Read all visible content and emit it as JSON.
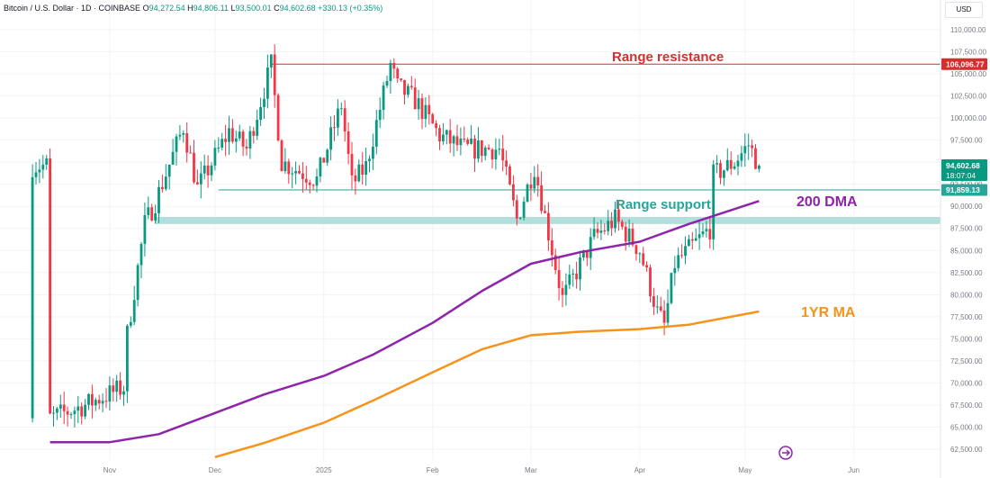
{
  "header": {
    "title": "Bitcoin / U.S. Dollar · 1D · COINBASE",
    "o_label": "O",
    "o": "94,272.54",
    "h_label": "H",
    "h": "94,806.11",
    "l_label": "L",
    "l": "93,500.01",
    "c_label": "C",
    "c": "94,602.68",
    "change": "+330.13 (+0.35%)"
  },
  "currency_button": "USD",
  "colors": {
    "up": "#089981",
    "down": "#f23645",
    "dma200": "#8e24aa",
    "ma1y": "#f7931a",
    "resistance": "#d32f2f",
    "support": "#26a69a"
  },
  "annotations": {
    "resistance": "Range resistance",
    "support": "Range support",
    "dma": "200 DMA",
    "ma1y": "1YR MA"
  },
  "price_labels": {
    "resistance": "106,096.77",
    "current": "94,602.68",
    "countdown": "18:07:04",
    "support": "91,859.13"
  },
  "chart_data": {
    "type": "candlestick",
    "title": "Bitcoin / U.S. Dollar · 1D · COINBASE",
    "y_ticks": [
      "110,000.00",
      "107,500.00",
      "105,000.00",
      "102,500.00",
      "100,000.00",
      "97,500.00",
      "95,000.00",
      "92,500.00",
      "90,000.00",
      "87,500.00",
      "85,000.00",
      "82,500.00",
      "80,000.00",
      "77,500.00",
      "75,000.00",
      "72,500.00",
      "70,000.00",
      "67,500.00",
      "65,000.00",
      "62,500.00"
    ],
    "x_ticks": [
      "Nov",
      "Dec",
      "2025",
      "Feb",
      "Mar",
      "Apr",
      "May",
      "Jun"
    ],
    "ylim": [
      61500,
      111500
    ],
    "levels": {
      "range_resistance": 106096.77,
      "range_support": 91859.13,
      "support_zone": [
        88000,
        88800
      ]
    },
    "close_path": [
      [
        "2024-10-15",
        66000
      ],
      [
        "2024-10-25",
        67500
      ],
      [
        "2024-11-05",
        69500
      ],
      [
        "2024-11-06",
        75500
      ],
      [
        "2024-11-11",
        88000
      ],
      [
        "2024-11-14",
        90500
      ],
      [
        "2024-11-22",
        99000
      ],
      [
        "2024-11-26",
        92000
      ],
      [
        "2024-12-05",
        98500
      ],
      [
        "2024-12-10",
        96500
      ],
      [
        "2024-12-17",
        106000
      ],
      [
        "2024-12-20",
        95000
      ],
      [
        "2024-12-30",
        93000
      ],
      [
        "2025-01-06",
        101500
      ],
      [
        "2025-01-09",
        92500
      ],
      [
        "2025-01-13",
        94500
      ],
      [
        "2025-01-20",
        106000
      ],
      [
        "2025-01-22",
        103500
      ],
      [
        "2025-01-27",
        102000
      ],
      [
        "2025-02-03",
        98000
      ],
      [
        "2025-02-10",
        96500
      ],
      [
        "2025-02-20",
        96500
      ],
      [
        "2025-02-25",
        88500
      ],
      [
        "2025-03-02",
        94500
      ],
      [
        "2025-03-10",
        79500
      ],
      [
        "2025-03-19",
        86500
      ],
      [
        "2025-03-25",
        88500
      ],
      [
        "2025-04-01",
        85000
      ],
      [
        "2025-04-06",
        78000
      ],
      [
        "2025-04-08",
        76500
      ],
      [
        "2025-04-11",
        83500
      ],
      [
        "2025-04-21",
        87500
      ],
      [
        "2025-04-22",
        93500
      ],
      [
        "2025-04-28",
        95000
      ],
      [
        "2025-05-02",
        97000
      ],
      [
        "2025-05-05",
        94602.68
      ]
    ],
    "series": [
      {
        "name": "200 DMA",
        "x": [
          "2024-10-15",
          "2024-11-01",
          "2024-11-15",
          "2024-12-01",
          "2024-12-15",
          "2025-01-01",
          "2025-01-15",
          "2025-02-01",
          "2025-02-15",
          "2025-03-01",
          "2025-03-15",
          "2025-04-01",
          "2025-04-15",
          "2025-05-05"
        ],
        "values": [
          63300,
          63300,
          64200,
          66600,
          68700,
          70800,
          73200,
          76800,
          80400,
          83500,
          84800,
          86000,
          88000,
          90600
        ]
      },
      {
        "name": "1YR MA",
        "x": [
          "2024-12-01",
          "2024-12-15",
          "2025-01-01",
          "2025-01-15",
          "2025-02-01",
          "2025-02-15",
          "2025-03-01",
          "2025-03-15",
          "2025-04-01",
          "2025-04-15",
          "2025-05-05"
        ],
        "values": [
          61600,
          63200,
          65500,
          68000,
          71200,
          73800,
          75400,
          75800,
          76100,
          76600,
          78100
        ]
      }
    ]
  }
}
